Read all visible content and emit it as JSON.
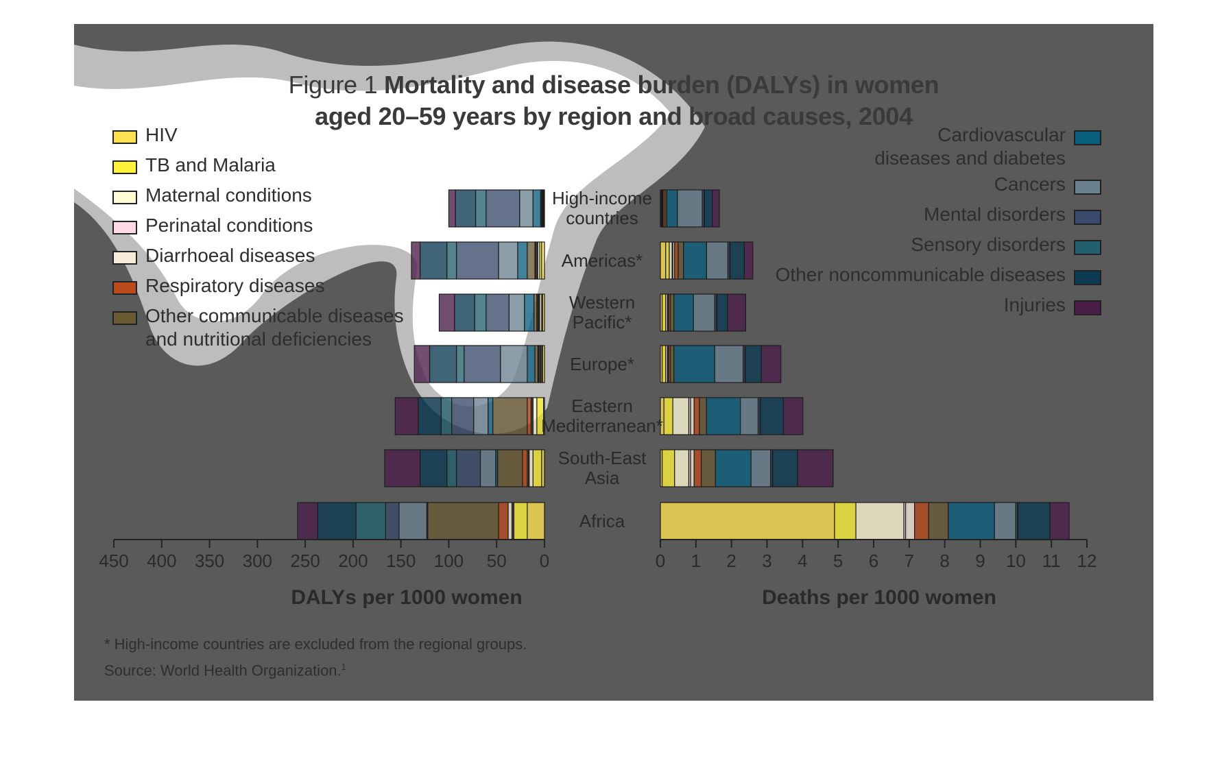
{
  "title": {
    "prefix": "Figure 1",
    "line1": "Mortality and disease burden (DALYs) in women",
    "line2": "aged 20–59 years by region and broad causes, 2004"
  },
  "legend_left": [
    {
      "label": "HIV",
      "color": "#ffe050"
    },
    {
      "label": "TB and Malaria",
      "color": "#fff23a"
    },
    {
      "label": "Maternal conditions",
      "color": "#fffbd6"
    },
    {
      "label": "Perinatal conditions",
      "color": "#ffd9e3"
    },
    {
      "label": "Diarrhoeal diseases",
      "color": "#f6ead8"
    },
    {
      "label": "Respiratory diseases",
      "color": "#b84a1e"
    },
    {
      "label": "Other communicable diseases",
      "label2": "and nutritional deficiencies",
      "color": "#6b5b34"
    }
  ],
  "legend_right": [
    {
      "label": "Cardiovascular",
      "label2": "diseases and diabetes",
      "color": "#0b5f7e"
    },
    {
      "label": "Cancers",
      "color": "#6a8290"
    },
    {
      "label": "Mental disorders",
      "color": "#3a4a6c"
    },
    {
      "label": "Sensory disorders",
      "color": "#23606f"
    },
    {
      "label": "Other noncommunicable diseases",
      "color": "#0c3a52"
    },
    {
      "label": "Injuries",
      "color": "#4a1e48"
    }
  ],
  "footnote": "* High-income countries are excluded from the regional groups.",
  "source": "Source: World Health Organization.",
  "source_sup": "1",
  "chart_data": [
    {
      "type": "bar",
      "orientation": "horizontal",
      "stacked": true,
      "direction": "right-to-left",
      "xlabel": "DALYs per 1000 women",
      "xlim": [
        0,
        450
      ],
      "xticks": [
        0,
        50,
        100,
        150,
        200,
        250,
        300,
        350,
        400,
        450
      ],
      "categories": [
        "High-income countries",
        "Americas*",
        "Western Pacific*",
        "Europe*",
        "Eastern Mediterranean*",
        "South-East Asia",
        "Africa"
      ],
      "series": [
        {
          "name": "HIV",
          "values": [
            0.5,
            3,
            2,
            2,
            1,
            3,
            18
          ]
        },
        {
          "name": "TB and Malaria",
          "values": [
            0.5,
            2,
            1,
            1,
            7,
            9,
            14
          ]
        },
        {
          "name": "Maternal conditions",
          "values": [
            0.5,
            2,
            2,
            1,
            4,
            4,
            1
          ]
        },
        {
          "name": "Perinatal conditions",
          "values": [
            0.5,
            1,
            1,
            1,
            1,
            1,
            1
          ]
        },
        {
          "name": "Diarrhoeal diseases",
          "values": [
            0.5,
            1,
            1,
            1,
            1,
            1,
            4
          ]
        },
        {
          "name": "Respiratory diseases",
          "values": [
            0.5,
            1,
            1,
            1,
            4,
            5,
            10
          ]
        },
        {
          "name": "Other communicable diseases and nutritional deficiencies",
          "values": [
            1,
            8,
            3,
            3,
            36,
            26,
            74
          ]
        },
        {
          "name": "Cardiovascular diseases and diabetes",
          "values": [
            8,
            10,
            10,
            8,
            5,
            2,
            1
          ]
        },
        {
          "name": "Cancers",
          "values": [
            14,
            20,
            16,
            28,
            15,
            16,
            29
          ]
        },
        {
          "name": "Mental disorders",
          "values": [
            35,
            44,
            24,
            38,
            23,
            25,
            14
          ]
        },
        {
          "name": "Sensory disorders",
          "values": [
            11,
            10,
            12,
            8,
            11,
            10,
            31
          ]
        },
        {
          "name": "Other noncommunicable diseases",
          "values": [
            21,
            28,
            21,
            28,
            24,
            28,
            40
          ]
        },
        {
          "name": "Injuries",
          "values": [
            7,
            9,
            16,
            16,
            24,
            37,
            21
          ]
        }
      ]
    },
    {
      "type": "bar",
      "orientation": "horizontal",
      "stacked": true,
      "xlabel": "Deaths per 1000 women",
      "xlim": [
        0,
        12
      ],
      "xticks": [
        0,
        1,
        2,
        3,
        4,
        5,
        6,
        7,
        8,
        9,
        10,
        11,
        12
      ],
      "categories": [
        "High-income countries",
        "Americas*",
        "Western Pacific*",
        "Europe*",
        "Eastern Mediterranean*",
        "South-East Asia",
        "Africa"
      ],
      "series": [
        {
          "name": "HIV",
          "values": [
            0.02,
            0.15,
            0.05,
            0.05,
            0.1,
            0.05,
            4.9
          ]
        },
        {
          "name": "TB and Malaria",
          "values": [
            0.02,
            0.1,
            0.1,
            0.1,
            0.25,
            0.35,
            0.6
          ]
        },
        {
          "name": "Maternal conditions",
          "values": [
            0.02,
            0.08,
            0.05,
            0.05,
            0.45,
            0.4,
            1.35
          ]
        },
        {
          "name": "Perinatal conditions",
          "values": [
            0.01,
            0.02,
            0.01,
            0.01,
            0.05,
            0.05,
            0.05
          ]
        },
        {
          "name": "Diarrhoeal diseases",
          "values": [
            0.01,
            0.05,
            0.02,
            0.02,
            0.1,
            0.1,
            0.25
          ]
        },
        {
          "name": "Respiratory diseases",
          "values": [
            0.05,
            0.1,
            0.05,
            0.05,
            0.15,
            0.2,
            0.4
          ]
        },
        {
          "name": "Other communicable diseases and nutritional deficiencies",
          "values": [
            0.05,
            0.15,
            0.1,
            0.1,
            0.2,
            0.4,
            0.55
          ]
        },
        {
          "name": "Cardiovascular diseases and diabetes",
          "values": [
            0.3,
            0.65,
            0.55,
            1.15,
            0.95,
            1.0,
            1.3
          ]
        },
        {
          "name": "Cancers",
          "values": [
            0.7,
            0.6,
            0.6,
            0.8,
            0.5,
            0.55,
            0.6
          ]
        },
        {
          "name": "Mental disorders",
          "values": [
            0.05,
            0.05,
            0.05,
            0.05,
            0.05,
            0.05,
            0.05
          ]
        },
        {
          "name": "Sensory disorders",
          "values": [
            0.01,
            0.01,
            0.01,
            0.01,
            0.01,
            0.01,
            0.01
          ]
        },
        {
          "name": "Other noncommunicable diseases",
          "values": [
            0.22,
            0.4,
            0.3,
            0.45,
            0.65,
            0.7,
            0.9
          ]
        },
        {
          "name": "Injuries",
          "values": [
            0.2,
            0.24,
            0.51,
            0.55,
            0.55,
            1.0,
            0.54
          ]
        }
      ]
    }
  ]
}
